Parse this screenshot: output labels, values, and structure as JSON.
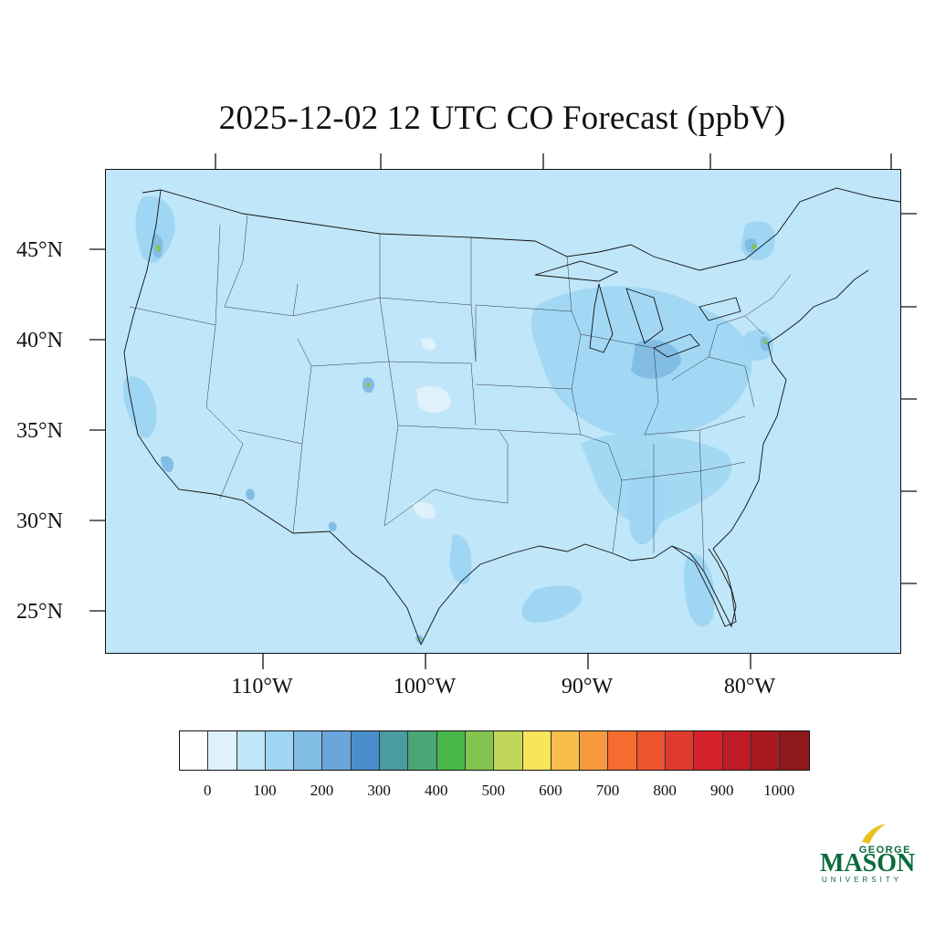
{
  "title": "2025-12-02 12 UTC CO Forecast (ppbV)",
  "lat_labels": [
    "45°N",
    "40°N",
    "35°N",
    "30°N",
    "25°N"
  ],
  "lon_labels": [
    "110°W",
    "100°W",
    "90°W",
    "80°W"
  ],
  "colorbar": {
    "colors": [
      "#ffffff",
      "#dff1fb",
      "#bfe6f9",
      "#9fd6f3",
      "#82bde5",
      "#6aa6dc",
      "#4a8fcb",
      "#4a9ca0",
      "#48a774",
      "#48b74a",
      "#83c550",
      "#c1d75a",
      "#f8e55a",
      "#f8bd4a",
      "#f79a3d",
      "#f46d2e",
      "#ec5430",
      "#e03a2d",
      "#d4212b",
      "#be1b24",
      "#a8191f",
      "#8e181b"
    ],
    "tick_labels": [
      "0",
      "100",
      "200",
      "300",
      "400",
      "500",
      "600",
      "700",
      "800",
      "900",
      "1000"
    ]
  },
  "logo": {
    "line1": "GEORGE",
    "line2": "MASON",
    "line3": "UNIVERSITY",
    "color": "#0a6b3b",
    "accent": "#e8c21c"
  },
  "colors": {
    "ocean_background": "#bfe6f9",
    "land_base": "#bfe6f9",
    "elevated": "#9fd6f3",
    "high": "#82bde5",
    "hotspot": "#4a9ca0",
    "peak": "#83c550"
  }
}
